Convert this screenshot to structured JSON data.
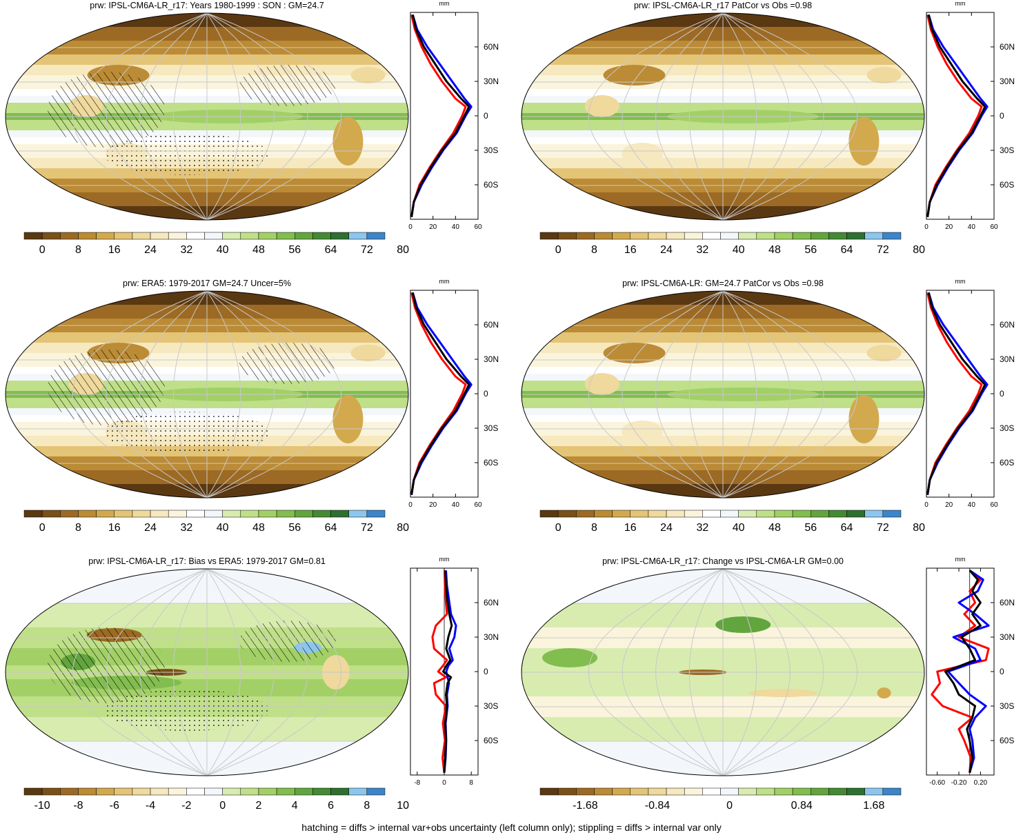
{
  "footer": "hatching = diffs > internal var+obs uncertainty (left column only); stippling = diffs > internal var only",
  "colors": {
    "brown_to_green": [
      "#5a3812",
      "#7a5019",
      "#9c6a24",
      "#bb8b35",
      "#d3a94e",
      "#e4c477",
      "#efd99c",
      "#f6e8bf",
      "#fbf4dd",
      "#ffffff",
      "#f3f7fb",
      "#d8ecb0",
      "#bfe088",
      "#a2d066",
      "#82bd4f",
      "#62a53f",
      "#448a34",
      "#2e7030",
      "#8cc6ee",
      "#3d85c8"
    ],
    "model_line": "#000000",
    "obs_line_a": "#0000ff",
    "obs_line_b": "#ff0000",
    "grid": "#c8c8c8"
  },
  "panels": [
    {
      "title": "prw: IPSL-CM6A-LR_r17: Years 1980-1999 : SON : GM=24.7",
      "colorbar_labels": [
        "0",
        "8",
        "16",
        "24",
        "32",
        "40",
        "48",
        "56",
        "64",
        "72",
        "80"
      ],
      "profile_unit": "mm",
      "lat_labels": [
        "60N",
        "30N",
        "0",
        "30S",
        "60S"
      ],
      "profile_x_labels": [
        "0",
        "20",
        "40",
        "60"
      ],
      "overlay": "hatch+stipple"
    },
    {
      "title": "prw: IPSL-CM6A-LR_r17 PatCor vs Obs =0.98",
      "colorbar_labels": [
        "0",
        "8",
        "16",
        "24",
        "32",
        "40",
        "48",
        "56",
        "64",
        "72",
        "80"
      ],
      "profile_unit": "mm",
      "lat_labels": [
        "60N",
        "30N",
        "0",
        "30S",
        "60S"
      ],
      "profile_x_labels": [
        "0",
        "20",
        "40",
        "60"
      ],
      "overlay": "none"
    },
    {
      "title": "prw: ERA5: 1979-2017 GM=24.7 Uncer=5%",
      "colorbar_labels": [
        "0",
        "8",
        "16",
        "24",
        "32",
        "40",
        "48",
        "56",
        "64",
        "72",
        "80"
      ],
      "profile_unit": "mm",
      "lat_labels": [
        "60N",
        "30N",
        "0",
        "30S",
        "60S"
      ],
      "profile_x_labels": [
        "0",
        "20",
        "40",
        "60"
      ],
      "overlay": "hatch+stipple"
    },
    {
      "title": "prw: IPSL-CM6A-LR: GM=24.7 PatCor vs Obs =0.98",
      "colorbar_labels": [
        "0",
        "8",
        "16",
        "24",
        "32",
        "40",
        "48",
        "56",
        "64",
        "72",
        "80"
      ],
      "profile_unit": "mm",
      "lat_labels": [
        "60N",
        "30N",
        "0",
        "30S",
        "60S"
      ],
      "profile_x_labels": [
        "0",
        "20",
        "40",
        "60"
      ],
      "overlay": "none"
    },
    {
      "title": "prw: IPSL-CM6A-LR_r17: Bias vs ERA5: 1979-2017  GM=0.81",
      "colorbar_labels": [
        "-10",
        "-8",
        "-6",
        "-4",
        "-2",
        "0",
        "2",
        "4",
        "6",
        "8",
        "10"
      ],
      "profile_unit": "mm",
      "lat_labels": [
        "60N",
        "30N",
        "0",
        "30S",
        "60S"
      ],
      "profile_x_labels": [
        "-8",
        "0",
        "8"
      ],
      "overlay": "hatch+stipple"
    },
    {
      "title": "prw: IPSL-CM6A-LR_r17: Change vs IPSL-CM6A-LR GM=0.00",
      "colorbar_labels": [
        "-1.68",
        "-0.84",
        "0",
        "0.84",
        "1.68"
      ],
      "profile_unit": "mm",
      "lat_labels": [
        "60N",
        "30N",
        "0",
        "30S",
        "60S"
      ],
      "profile_x_labels": [
        "-0.60",
        "-0.20",
        "0.20"
      ],
      "overlay": "none"
    }
  ],
  "chart_data": [
    {
      "type": "line",
      "panel": 0,
      "xlim": [
        0,
        60
      ],
      "ylim": [
        -90,
        90
      ],
      "lat": [
        -88,
        -75,
        -60,
        -45,
        -30,
        -15,
        0,
        8,
        15,
        30,
        45,
        60,
        75,
        88
      ],
      "series": [
        {
          "color": "#000000",
          "values": [
            1,
            3,
            9,
            18,
            28,
            40,
            48,
            52,
            45,
            32,
            22,
            12,
            5,
            2
          ]
        },
        {
          "color": "#0000ff",
          "values": [
            1,
            3,
            10,
            19,
            29,
            41,
            49,
            54,
            48,
            37,
            26,
            15,
            6,
            2
          ]
        },
        {
          "color": "#ff0000",
          "values": [
            1,
            3,
            8,
            17,
            27,
            38,
            46,
            49,
            40,
            28,
            18,
            10,
            4,
            1
          ]
        }
      ]
    },
    {
      "type": "line",
      "panel": 1,
      "xlim": [
        0,
        60
      ],
      "ylim": [
        -90,
        90
      ],
      "lat": [
        -88,
        -75,
        -60,
        -45,
        -30,
        -15,
        0,
        8,
        15,
        30,
        45,
        60,
        75,
        88
      ],
      "series": [
        {
          "color": "#000000",
          "values": [
            1,
            3,
            9,
            18,
            28,
            40,
            48,
            52,
            45,
            32,
            22,
            12,
            5,
            2
          ]
        },
        {
          "color": "#0000ff",
          "values": [
            1,
            3,
            10,
            19,
            29,
            41,
            49,
            54,
            48,
            37,
            26,
            15,
            6,
            2
          ]
        },
        {
          "color": "#ff0000",
          "values": [
            1,
            3,
            8,
            17,
            27,
            38,
            46,
            49,
            40,
            28,
            18,
            10,
            4,
            1
          ]
        }
      ]
    },
    {
      "type": "line",
      "panel": 2,
      "xlim": [
        0,
        60
      ],
      "ylim": [
        -90,
        90
      ],
      "lat": [
        -88,
        -75,
        -60,
        -45,
        -30,
        -15,
        0,
        8,
        15,
        30,
        45,
        60,
        75,
        88
      ],
      "series": [
        {
          "color": "#000000",
          "values": [
            1,
            3,
            9,
            18,
            28,
            40,
            48,
            52,
            45,
            32,
            22,
            12,
            5,
            2
          ]
        },
        {
          "color": "#0000ff",
          "values": [
            1,
            3,
            10,
            19,
            29,
            41,
            49,
            54,
            48,
            37,
            26,
            15,
            6,
            2
          ]
        },
        {
          "color": "#ff0000",
          "values": [
            1,
            3,
            8,
            17,
            27,
            38,
            46,
            49,
            40,
            28,
            18,
            10,
            4,
            1
          ]
        }
      ]
    },
    {
      "type": "line",
      "panel": 3,
      "xlim": [
        0,
        60
      ],
      "ylim": [
        -90,
        90
      ],
      "lat": [
        -88,
        -75,
        -60,
        -45,
        -30,
        -15,
        0,
        8,
        15,
        30,
        45,
        60,
        75,
        88
      ],
      "series": [
        {
          "color": "#000000",
          "values": [
            1,
            3,
            9,
            18,
            28,
            40,
            48,
            52,
            45,
            32,
            22,
            12,
            5,
            2
          ]
        },
        {
          "color": "#0000ff",
          "values": [
            1,
            3,
            10,
            19,
            29,
            41,
            49,
            54,
            48,
            37,
            26,
            15,
            6,
            2
          ]
        },
        {
          "color": "#ff0000",
          "values": [
            1,
            3,
            8,
            17,
            27,
            38,
            46,
            49,
            40,
            28,
            18,
            10,
            4,
            1
          ]
        }
      ]
    },
    {
      "type": "line",
      "panel": 4,
      "xlim": [
        -10,
        10
      ],
      "ylim": [
        -90,
        90
      ],
      "lat": [
        -88,
        -75,
        -60,
        -45,
        -30,
        -20,
        -10,
        -5,
        0,
        5,
        10,
        20,
        30,
        40,
        50,
        60,
        75,
        88
      ],
      "series": [
        {
          "color": "#000000",
          "values": [
            0,
            0.3,
            0.5,
            0.3,
            0.8,
            0.5,
            1.0,
            2.0,
            -0.3,
            0.6,
            1.8,
            0.6,
            1.2,
            2.2,
            1.5,
            1.0,
            0.5,
            0.3
          ]
        },
        {
          "color": "#0000ff",
          "values": [
            0,
            0.4,
            0.6,
            0.4,
            1.0,
            0.8,
            1.4,
            1.0,
            0.6,
            1.2,
            2.5,
            1.5,
            3.0,
            3.5,
            2.0,
            1.5,
            0.8,
            0.5
          ]
        },
        {
          "color": "#ff0000",
          "values": [
            0,
            -0.5,
            0.2,
            -0.4,
            0.5,
            -2.5,
            -3.0,
            0.5,
            -1.8,
            -0.4,
            0.8,
            -3.0,
            -3.5,
            -2.5,
            0.8,
            0.5,
            0.2,
            0.1
          ]
        }
      ]
    },
    {
      "type": "line",
      "panel": 5,
      "xlim": [
        -0.8,
        0.45
      ],
      "ylim": [
        -90,
        90
      ],
      "lat": [
        -88,
        -75,
        -60,
        -50,
        -40,
        -30,
        -20,
        -10,
        0,
        10,
        20,
        30,
        40,
        50,
        60,
        70,
        80,
        88
      ],
      "series": [
        {
          "color": "#000000",
          "values": [
            0,
            0.05,
            0.0,
            -0.05,
            0.05,
            0.1,
            -0.2,
            -0.3,
            -0.45,
            0.1,
            0.0,
            -0.15,
            0.2,
            0.05,
            0.2,
            0.05,
            0.15,
            0.0
          ]
        },
        {
          "color": "#0000ff",
          "values": [
            0,
            0.08,
            0.05,
            0.0,
            0.1,
            0.3,
            0.0,
            -0.2,
            -0.4,
            0.2,
            0.1,
            -0.3,
            0.35,
            0.1,
            -0.2,
            0.15,
            0.25,
            0.0
          ]
        },
        {
          "color": "#ff0000",
          "values": [
            0,
            0.02,
            -0.1,
            -0.2,
            0.05,
            -0.5,
            -0.7,
            -0.55,
            -0.6,
            0.3,
            0.35,
            -0.2,
            0.1,
            -0.1,
            0.1,
            0.0,
            0.2,
            0.0
          ]
        }
      ]
    }
  ]
}
